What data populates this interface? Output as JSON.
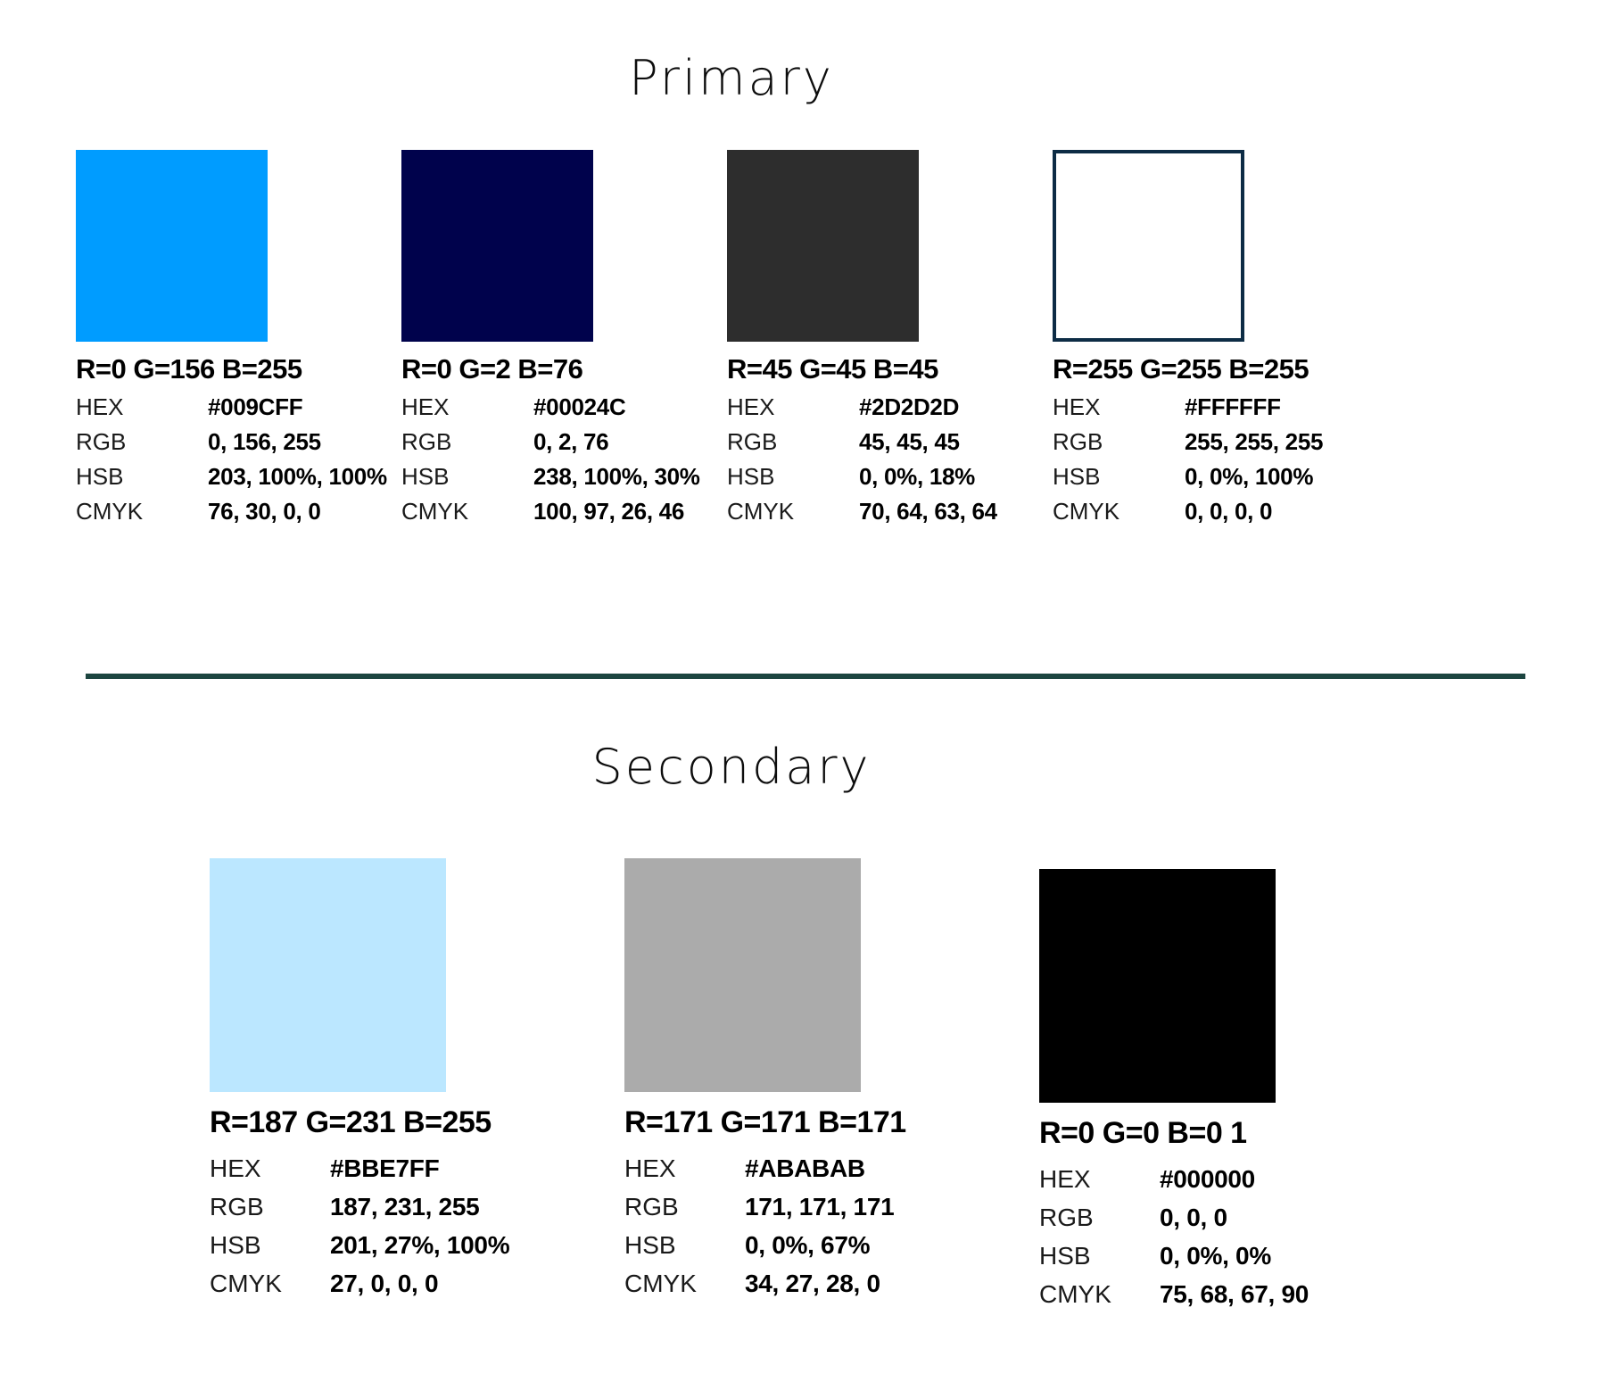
{
  "labels": {
    "hex": "HEX",
    "rgb": "RGB",
    "hsb": "HSB",
    "cmyk": "CMYK"
  },
  "colors": {
    "divider": "#1C4540",
    "swatch_border": "#0D2C45",
    "heading_text": "#0D0D0D",
    "body_text": "#000000"
  },
  "sections": [
    {
      "heading": "Primary",
      "swatches": [
        {
          "title": "R=0 G=156 B=255",
          "bordered": false,
          "values": {
            "hex": "#009CFF",
            "rgb": "0, 156, 255",
            "hsb": "203, 100%, 100%",
            "cmyk": "76, 30, 0, 0"
          }
        },
        {
          "title": "R=0 G=2 B=76",
          "bordered": false,
          "values": {
            "hex": "#00024C",
            "rgb": "0, 2, 76",
            "hsb": "238, 100%, 30%",
            "cmyk": "100, 97, 26, 46"
          }
        },
        {
          "title": "R=45 G=45 B=45",
          "bordered": false,
          "values": {
            "hex": "#2D2D2D",
            "rgb": "45, 45, 45",
            "hsb": "0, 0%, 18%",
            "cmyk": "70, 64, 63, 64"
          }
        },
        {
          "title": "R=255 G=255 B=255",
          "bordered": true,
          "values": {
            "hex": "#FFFFFF",
            "rgb": "255, 255, 255",
            "hsb": "0, 0%, 100%",
            "cmyk": "0, 0, 0, 0"
          }
        }
      ]
    },
    {
      "heading": "Secondary",
      "swatches": [
        {
          "title": "R=187 G=231 B=255",
          "bordered": false,
          "values": {
            "hex": "#BBE7FF",
            "rgb": "187, 231, 255",
            "hsb": "201, 27%, 100%",
            "cmyk": "27, 0, 0, 0"
          }
        },
        {
          "title": "R=171 G=171 B=171",
          "bordered": false,
          "values": {
            "hex": "#ABABAB",
            "rgb": "171, 171, 171",
            "hsb": "0, 0%, 67%",
            "cmyk": "34, 27, 28, 0"
          }
        },
        {
          "title": "R=0 G=0 B=0 1",
          "bordered": false,
          "values": {
            "hex": "#000000",
            "rgb": "0, 0, 0",
            "hsb": "0, 0%, 0%",
            "cmyk": "75, 68, 67, 90"
          }
        }
      ]
    }
  ]
}
